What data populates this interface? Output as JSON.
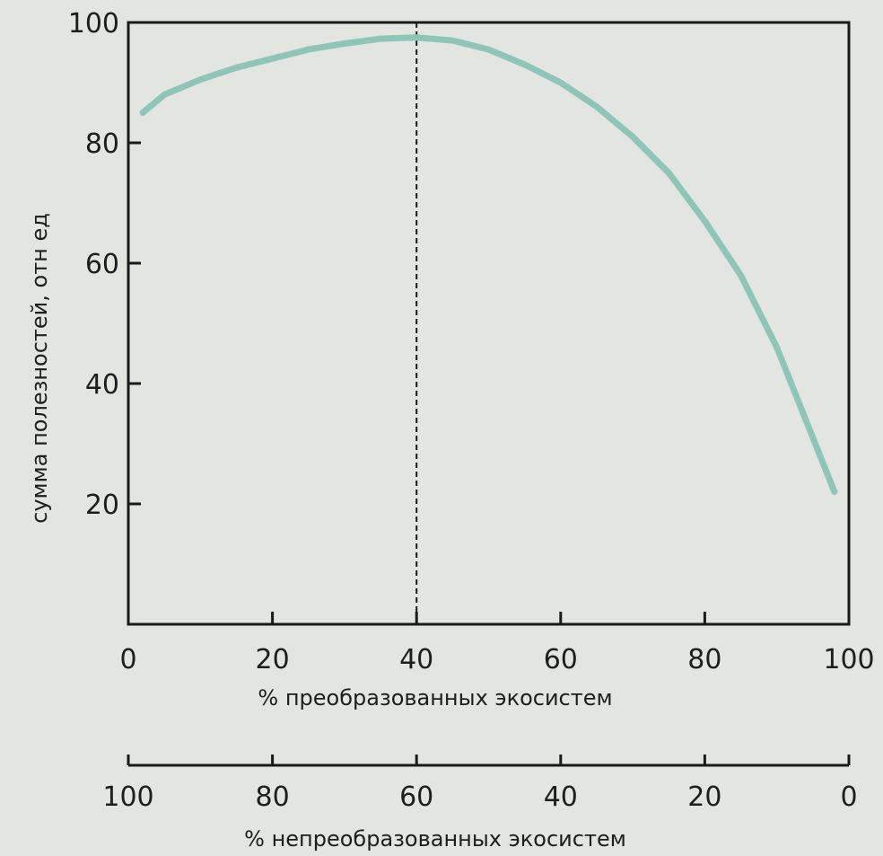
{
  "chart_data": {
    "type": "line",
    "title": "",
    "ylabel": "сумма полезностей, отн ед",
    "xlabel": "% преобразованных экосистем",
    "x2label": "% непреобразованных экосистем",
    "xlim": [
      0,
      100
    ],
    "ylim": [
      0,
      100
    ],
    "xticks": [
      0,
      20,
      40,
      60,
      80,
      100
    ],
    "yticks": [
      20,
      40,
      60,
      80,
      100
    ],
    "x2ticks": [
      100,
      80,
      60,
      40,
      20,
      0
    ],
    "grid": false,
    "reference_line_x": 40,
    "series": [
      {
        "color": "#8fc4b8",
        "x": [
          2,
          5,
          10,
          15,
          20,
          25,
          30,
          35,
          40,
          45,
          50,
          55,
          60,
          65,
          70,
          75,
          80,
          85,
          90,
          93,
          96,
          98
        ],
        "y": [
          85,
          88,
          90.5,
          92.5,
          94,
          95.5,
          96.5,
          97.3,
          97.5,
          97,
          95.5,
          93,
          90,
          86,
          81,
          75,
          67,
          58,
          46,
          37,
          28,
          22
        ]
      }
    ]
  }
}
